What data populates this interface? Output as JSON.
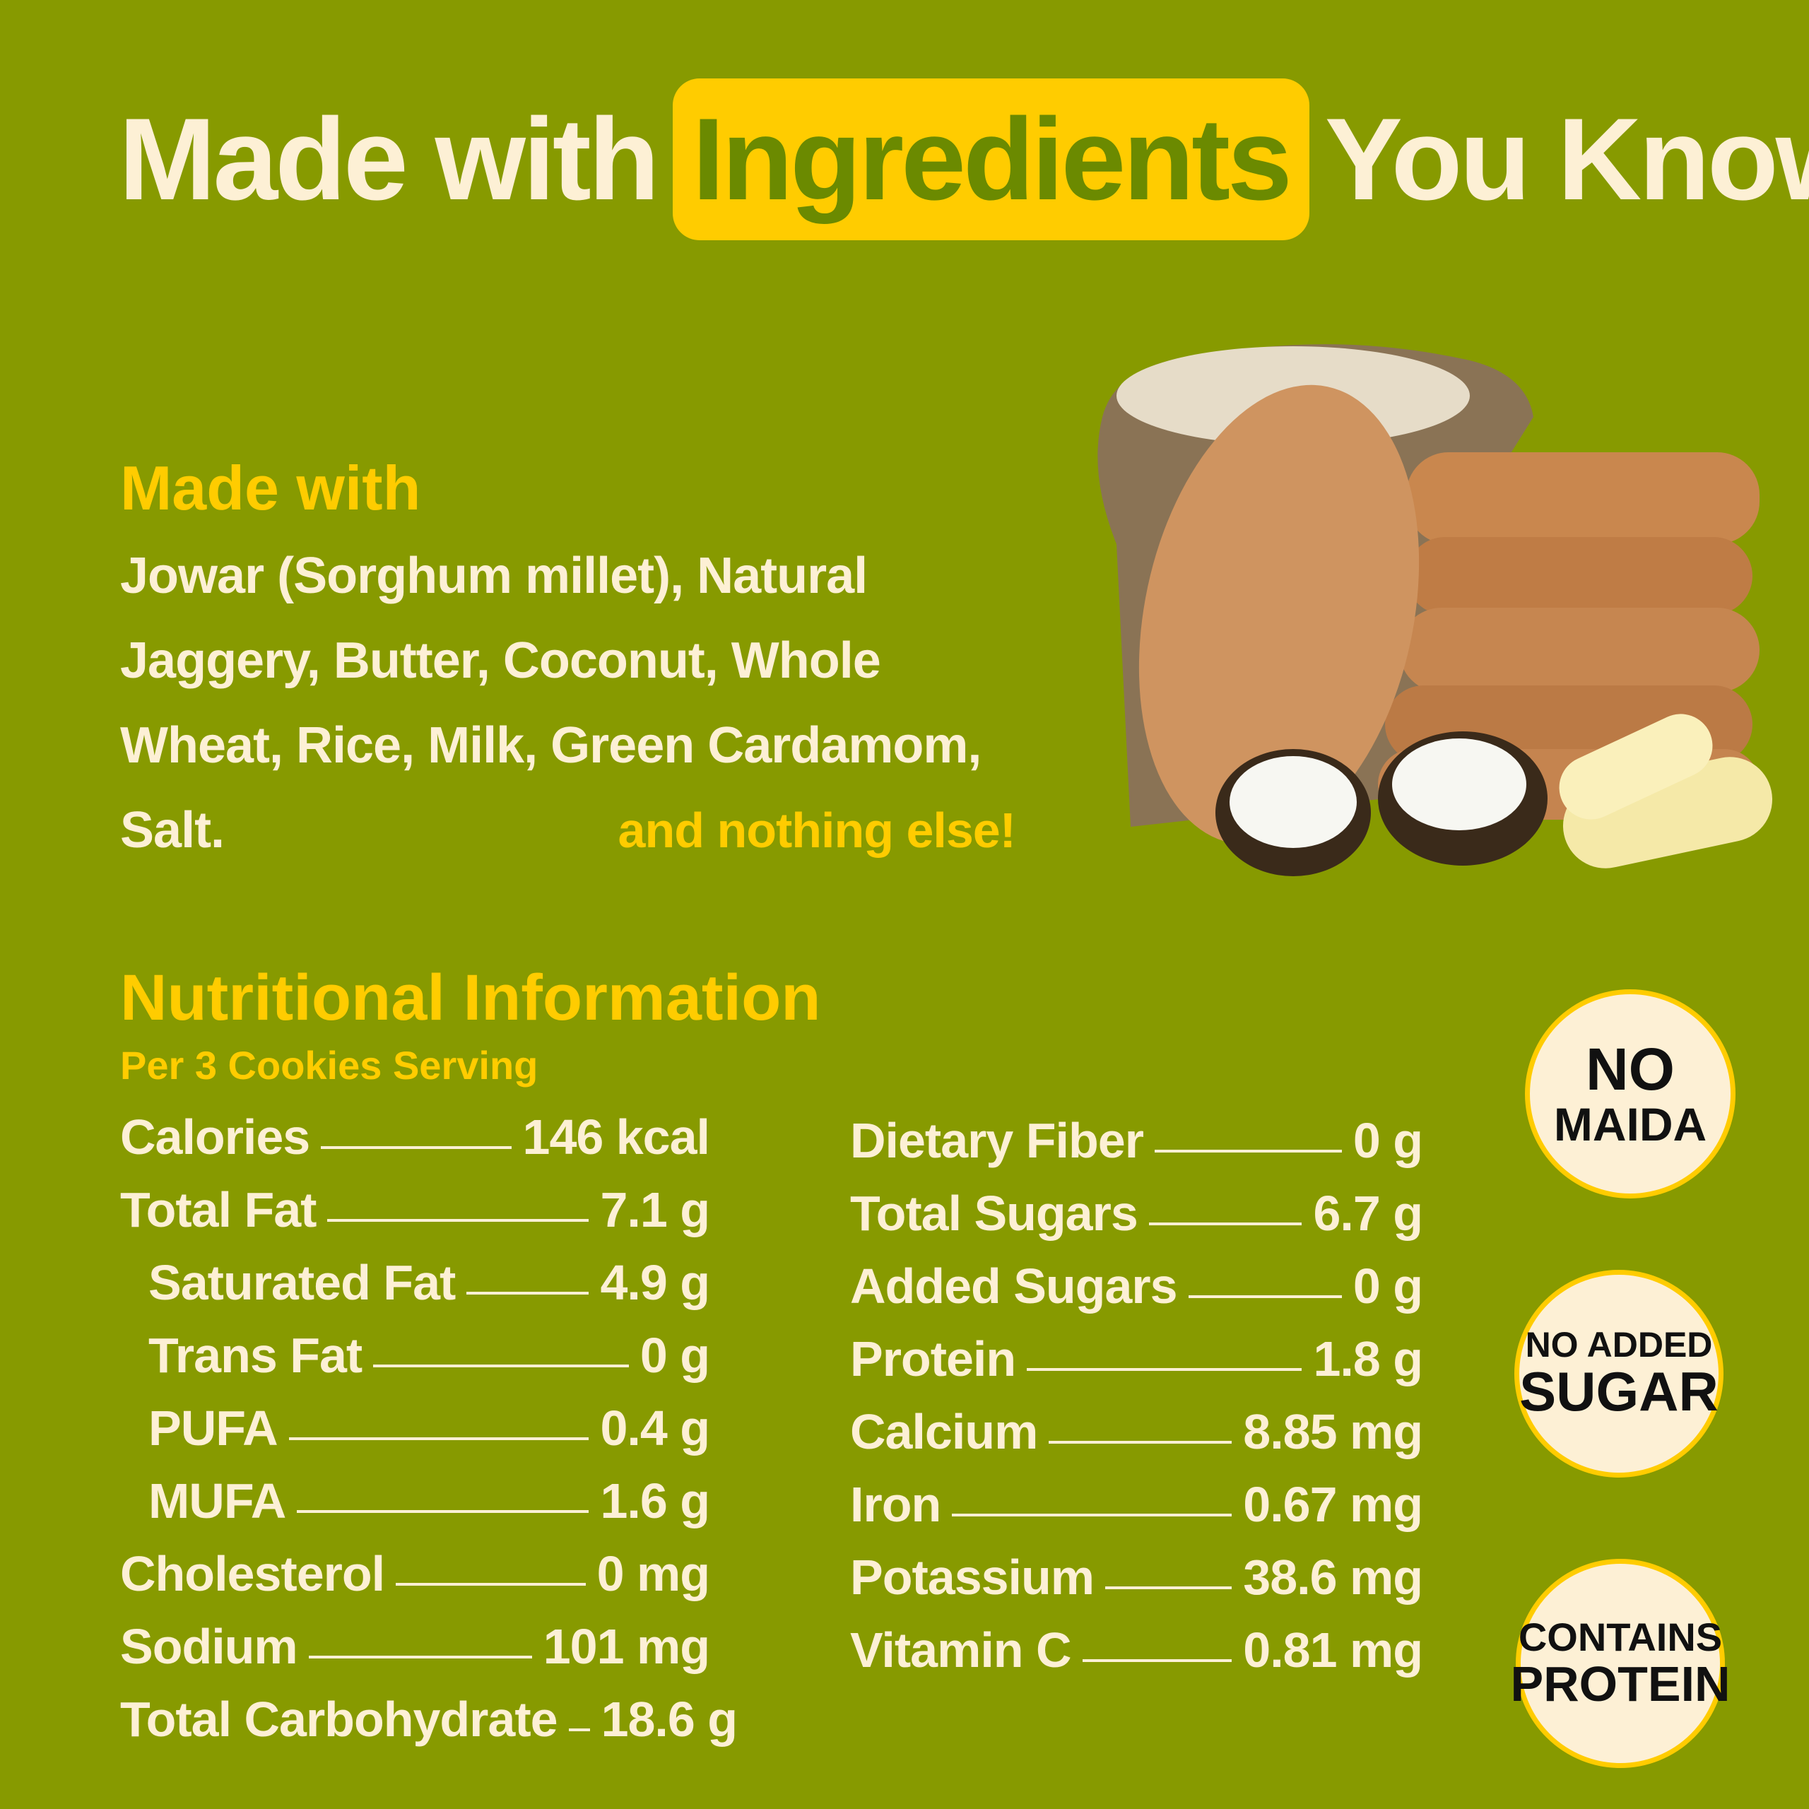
{
  "header": {
    "title_before": "Made with",
    "title_highlight": "Ingredients",
    "title_after": "You Know!"
  },
  "ingredients": {
    "heading": "Made with",
    "text": "Jowar (Sorghum millet), Natural Jaggery, Butter, Coconut, Whole Wheat, Rice, Milk, Green Cardamom, Salt.",
    "tagline": "and nothing else!"
  },
  "nutrition": {
    "heading": "Nutritional Information",
    "serving": "Per 3 Cookies Serving",
    "left": [
      {
        "label": "Calories",
        "value": "146 kcal"
      },
      {
        "label": "Total Fat",
        "value": "7.1 g"
      },
      {
        "label": "Saturated Fat",
        "value": "4.9 g"
      },
      {
        "label": "Trans Fat",
        "value": "0 g"
      },
      {
        "label": "PUFA",
        "value": "0.4 g"
      },
      {
        "label": "MUFA",
        "value": "1.6 g"
      },
      {
        "label": "Cholesterol",
        "value": "0 mg"
      },
      {
        "label": "Sodium",
        "value": "101 mg"
      },
      {
        "label": "Total Carbohydrate",
        "value": "18.6 g"
      }
    ],
    "right": [
      {
        "label": "Dietary Fiber",
        "value": "0 g"
      },
      {
        "label": "Total Sugars",
        "value": "6.7 g"
      },
      {
        "label": "Added Sugars",
        "value": "0 g"
      },
      {
        "label": "Protein",
        "value": "1.8 g"
      },
      {
        "label": "Calcium",
        "value": "8.85 mg"
      },
      {
        "label": "Iron",
        "value": "0.67 mg"
      },
      {
        "label": "Potassium",
        "value": "38.6 mg"
      },
      {
        "label": "Vitamin C",
        "value": "0.81 mg"
      }
    ]
  },
  "badges": [
    {
      "line1": "NO",
      "line2": "MAIDA"
    },
    {
      "line1": "NO ADDED",
      "line2": "SUGAR"
    },
    {
      "line1": "CONTAINS",
      "line2": "PROTEIN"
    }
  ],
  "colors": {
    "background": "#879a00",
    "accent": "#ffcc00",
    "text": "#fdf0d5"
  }
}
